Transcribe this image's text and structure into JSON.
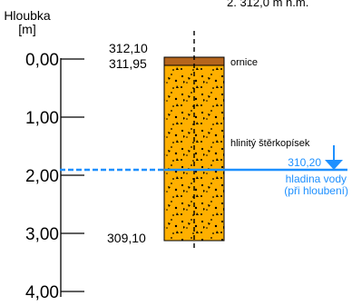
{
  "top_cut_text": "2. 312,0 m n.m.",
  "depth_axis": {
    "title": "Hloubka",
    "unit": "[m]",
    "range": [
      0,
      4
    ],
    "ticks": [
      "0,00",
      "1,00",
      "2,00",
      "3,00",
      "4,00"
    ]
  },
  "elevations": {
    "top": "312,10",
    "layer_boundary": "311,95",
    "bottom": "309,10"
  },
  "layers": [
    {
      "label": "ornice",
      "from_depth": 0.0,
      "to_depth": 0.15,
      "color": "#b5651d"
    },
    {
      "label": "hlinitý štěrkopísek",
      "from_depth": 0.15,
      "to_depth": 3.0,
      "color": "#ffb000"
    }
  ],
  "water": {
    "elevation": "310,20",
    "depth": 1.9,
    "label_line1": "hladina vody",
    "label_line2": "(při hloubení)",
    "color": "#1e90ff"
  }
}
